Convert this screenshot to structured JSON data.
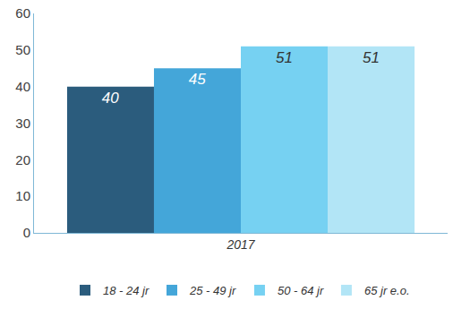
{
  "chart_data": {
    "type": "bar",
    "categories": [
      "2017"
    ],
    "series": [
      {
        "name": "18 - 24 jr",
        "color": "#2b5c7d",
        "values": [
          40
        ]
      },
      {
        "name": "25 - 49 jr",
        "color": "#44a6d9",
        "values": [
          45
        ]
      },
      {
        "name": "50 - 64 jr",
        "color": "#76d1f2",
        "values": [
          51
        ]
      },
      {
        "name": "65 jr e.o.",
        "color": "#b2e5f6",
        "values": [
          51
        ]
      }
    ],
    "ylim": [
      0,
      60
    ],
    "yticks": [
      0,
      10,
      20,
      30,
      40,
      50,
      60
    ],
    "grid": false,
    "legend": "bottom",
    "data_labels": true
  }
}
